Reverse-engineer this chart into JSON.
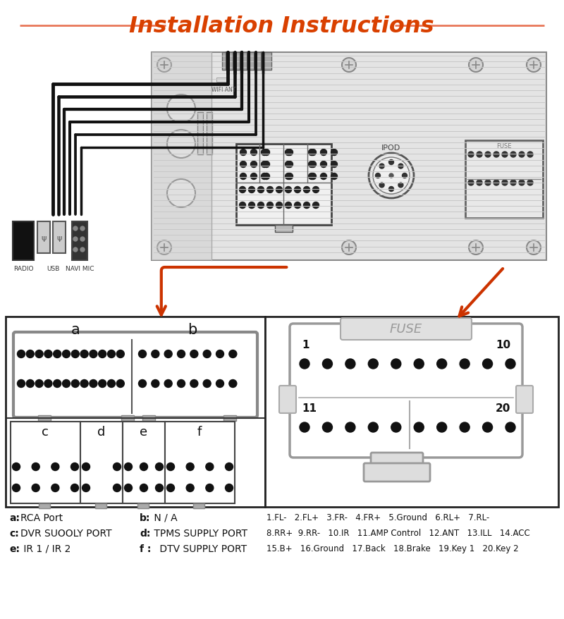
{
  "title": "Installation Instructions",
  "title_color": "#d94000",
  "bg_color": "#ffffff",
  "arrow_color": "#cc3300",
  "legend_lines": [
    [
      "a:",
      "RCA Port",
      "b:",
      " N / A"
    ],
    [
      "c:",
      "DVR SUOOLY PORT",
      "d:",
      " TPMS SUPPLY PORT"
    ],
    [
      "e:",
      " IR 1 / IR 2",
      "f :",
      " DTV SUPPLY PORT"
    ]
  ],
  "fuse_legend_line1": "1.FL-   2.FL+   3.FR-   4.FR+   5.Ground   6.RL+   7.RL-",
  "fuse_legend_line2": "8.RR+  9.RR-   10.IR   11.AMP Control   12.ANT   13.ILL   14.ACC",
  "fuse_legend_line3": "15.B+   16.Ground   17.Back   18.Brake   19.Key 1   20.Key 2"
}
